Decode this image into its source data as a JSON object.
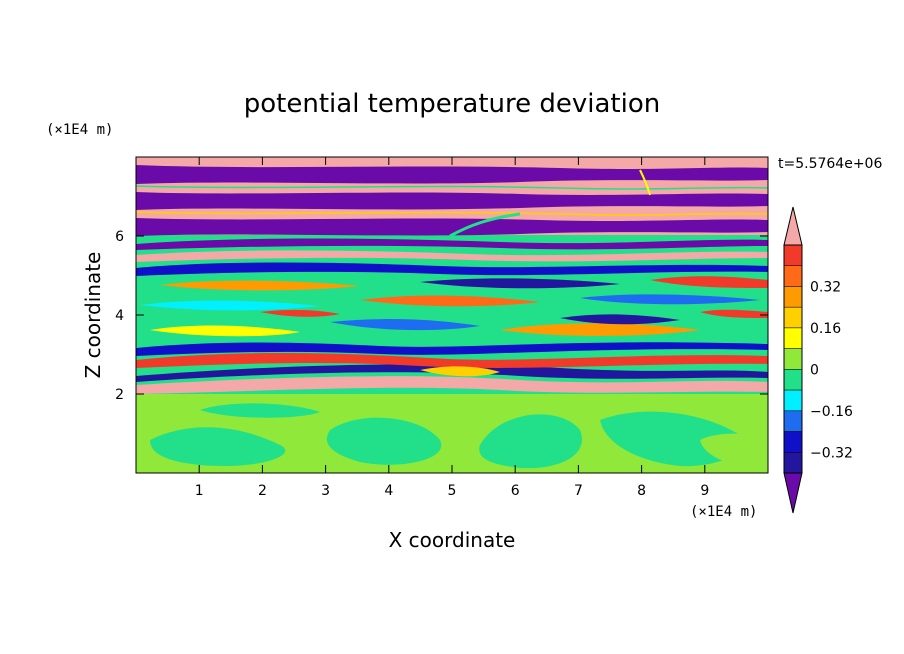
{
  "chart_data": {
    "type": "heatmap",
    "title": "potential temperature deviation",
    "xlabel": "X coordinate",
    "ylabel": "Z coordinate",
    "x_unit": "(×1E4 m)",
    "y_unit": "(×1E4 m)",
    "time_label": "t=5.5764e+06",
    "xlim": [
      0,
      10
    ],
    "ylim": [
      0,
      8
    ],
    "x_ticks": [
      "1",
      "2",
      "3",
      "4",
      "5",
      "6",
      "7",
      "8",
      "9"
    ],
    "y_ticks": [
      "2",
      "4",
      "6"
    ],
    "colorbar": {
      "levels": [
        {
          "value": "0.32",
          "color": "#f23a2a"
        },
        {
          "value": "0.16",
          "color": "#ff9a00"
        },
        {
          "value": "0",
          "color": "#8fe83a"
        },
        {
          "value": "−0.16",
          "color": "#1e6cf0"
        },
        {
          "value": "−0.32",
          "color": "#22169e"
        }
      ],
      "colors_high_to_low": [
        "#f4a8a8",
        "#f23a2a",
        "#ff6a18",
        "#ff9a00",
        "#ffd000",
        "#ffff00",
        "#8fe83a",
        "#22e08a",
        "#00f0ff",
        "#1e6cf0",
        "#1010c8",
        "#22169e",
        "#6a0aa8"
      ]
    },
    "regions": {
      "lower_layer": "z 0–2: weak deviation, mostly light green with darker green eddies",
      "middle_layer": "z 2–5: mixed wave structures, values from about −0.32 to 0.32",
      "upper_layer": "z 5–8: alternating horizontal bands of pink (>0.4) and purple (<−0.4)"
    }
  }
}
